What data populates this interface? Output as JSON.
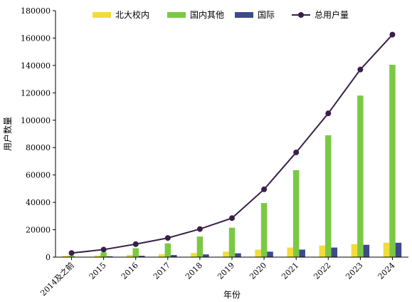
{
  "chart_data": {
    "type": "bar",
    "categories": [
      "2014及之前",
      "2015",
      "2016",
      "2017",
      "2018",
      "2019",
      "2020",
      "2021",
      "2022",
      "2023",
      "2024"
    ],
    "series": [
      {
        "name": "北大校内",
        "type": "bar",
        "color": "#f2dc3c",
        "values": [
          1000,
          1200,
          1600,
          2200,
          3000,
          4000,
          5500,
          7000,
          8500,
          9500,
          10500
        ]
      },
      {
        "name": "国内其他",
        "type": "bar",
        "color": "#7bc943",
        "values": [
          1000,
          3500,
          6500,
          10000,
          15000,
          21500,
          39500,
          63500,
          89000,
          118000,
          140500
        ]
      },
      {
        "name": "国际",
        "type": "bar",
        "color": "#3d4a8c",
        "values": [
          200,
          600,
          1000,
          1500,
          2000,
          2800,
          4000,
          5500,
          7000,
          9000,
          10500
        ]
      },
      {
        "name": "总用户量",
        "type": "line",
        "color": "#3a2048",
        "values": [
          3000,
          5500,
          9500,
          14000,
          20500,
          28500,
          49500,
          76500,
          105000,
          137000,
          162500
        ]
      }
    ],
    "xlabel": "年份",
    "ylabel": "用户数量",
    "ylim": [
      0,
      180000
    ],
    "yticks": [
      0,
      20000,
      40000,
      60000,
      80000,
      100000,
      120000,
      140000,
      160000,
      180000
    ],
    "grid": false,
    "legend": "top"
  }
}
